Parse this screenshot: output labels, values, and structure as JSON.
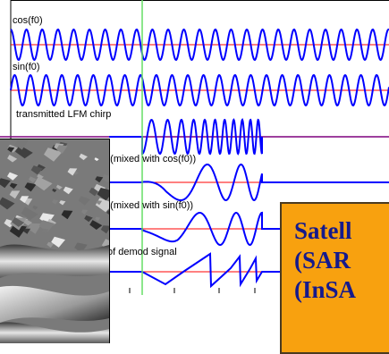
{
  "labels": {
    "cos": "cos(f0)",
    "sin": "sin(f0)",
    "chirp": "transmitted LFM chirp",
    "mixed_cos": "p (mixed with cos(f0))",
    "mixed_sin": "p (mixed with sin(f0))",
    "demod": "of demod signal"
  },
  "title_box": {
    "lines": [
      "Satell",
      "(SAR",
      "(InSA"
    ]
  },
  "colors": {
    "signal": "#0000ff",
    "reference": "#ff0000",
    "baseline": "#7f007f",
    "marker": "#66dd66",
    "title_bg": "#f8a10f",
    "title_text": "#151a8c"
  },
  "image": {
    "subject": "InSAR interferogram terrain image (grayscale)"
  }
}
